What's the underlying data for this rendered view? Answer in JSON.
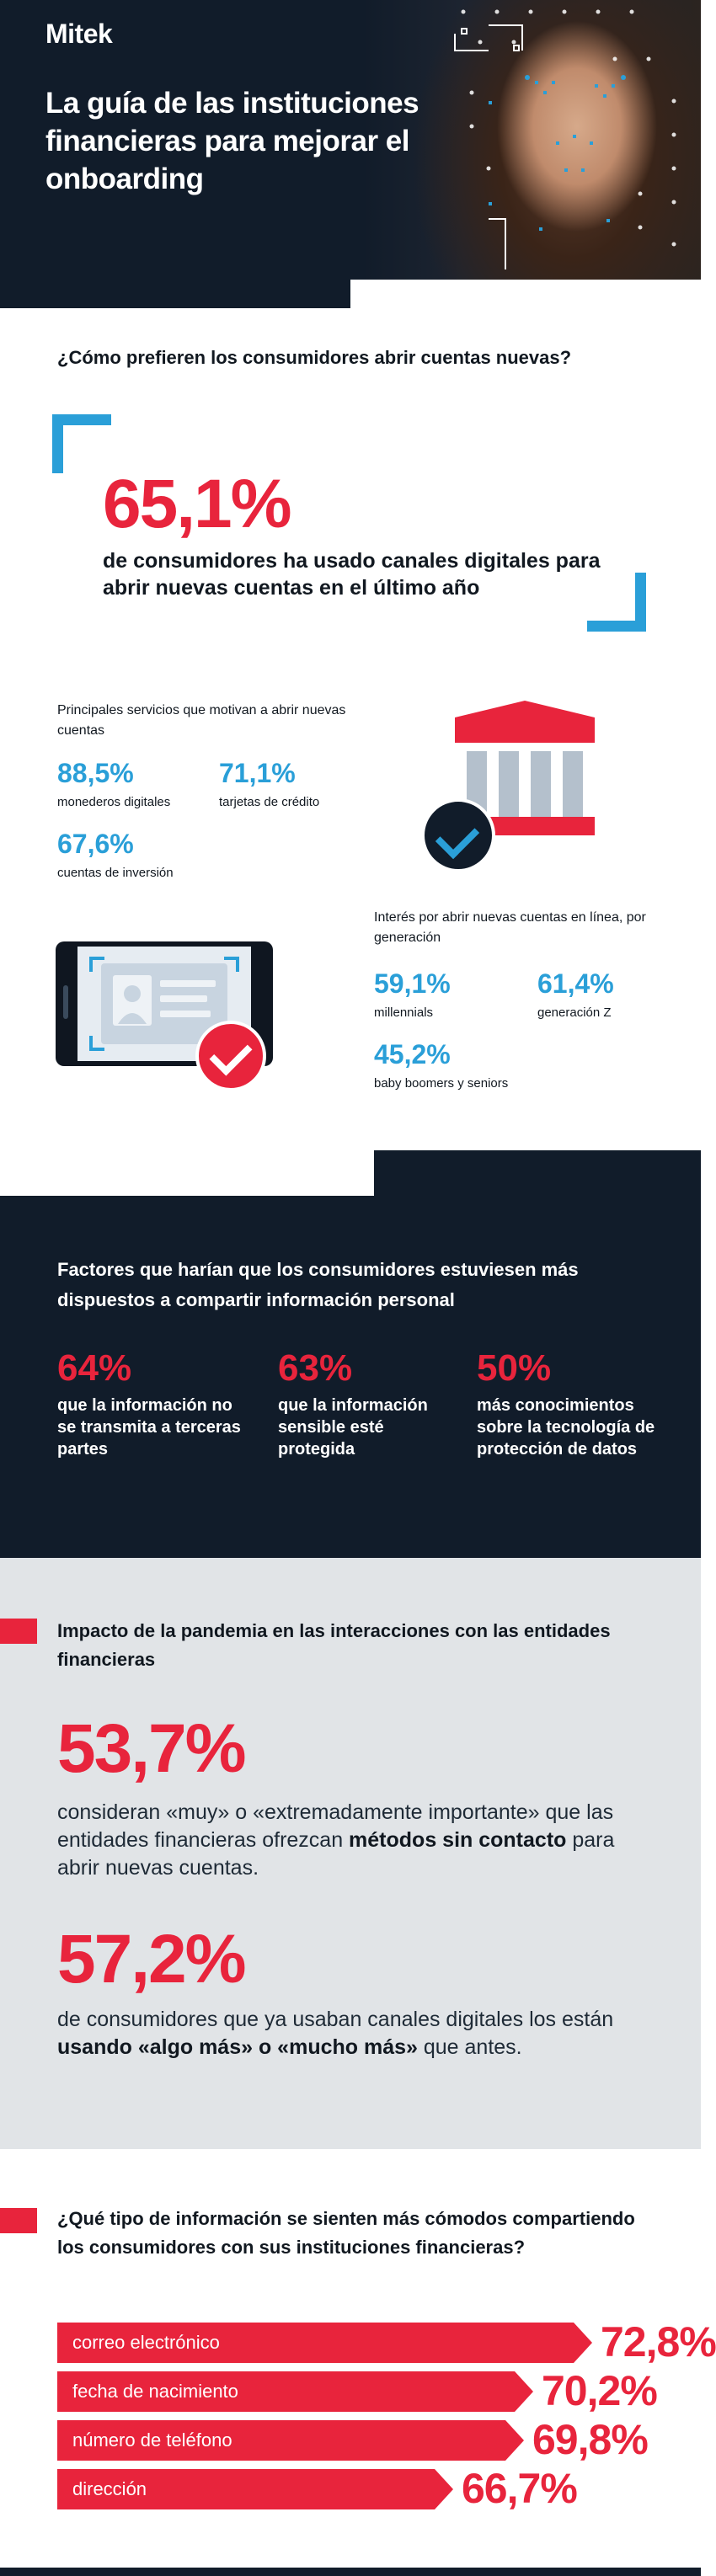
{
  "header": {
    "logo": "Mitek",
    "title": "La guía de las instituciones financieras para mejorar el onboarding"
  },
  "section1": {
    "question": "¿Cómo prefieren los consumidores abrir cuentas nuevas?",
    "big_stat": "65,1%",
    "big_desc": "de consumidores ha usado canales digitales para abrir nuevas cuentas en el último año",
    "services_label": "Principales servicios que motivan a abrir nuevas cuentas",
    "services": [
      {
        "value": "88,5%",
        "label": "monederos digitales"
      },
      {
        "value": "71,1%",
        "label": "tarjetas de crédito"
      },
      {
        "value": "67,6%",
        "label": "cuentas de inversión"
      }
    ],
    "generation_label": "Interés por abrir nuevas cuentas en línea, por generación",
    "generations": [
      {
        "value": "59,1%",
        "label": "millennials"
      },
      {
        "value": "61,4%",
        "label": "generación Z"
      },
      {
        "value": "45,2%",
        "label": "baby boomers y seniors"
      }
    ]
  },
  "section2": {
    "title": "Factores que harían que los consumidores estuviesen más dispuestos a compartir información personal",
    "factors": [
      {
        "value": "64%",
        "label": "que la información no se transmita a terceras partes"
      },
      {
        "value": "63%",
        "label": "que la información sensible esté protegida"
      },
      {
        "value": "50%",
        "label": "más conocimientos sobre la tecnología de protección de datos"
      }
    ]
  },
  "section3": {
    "title": "Impacto de la pandemia en las interacciones con las entidades financieras",
    "stat1": "53,7%",
    "stat1_pre": "consideran «muy» o «extremadamente importante» que las entidades financieras ofrezcan ",
    "stat1_bold": "métodos sin contacto",
    "stat1_post": " para abrir nuevas cuentas.",
    "stat2": "57,2%",
    "stat2_pre": "de consumidores que ya usaban canales digitales los están ",
    "stat2_bold": "usando «algo más» o «mucho más»",
    "stat2_post": " que antes."
  },
  "section4": {
    "title": "¿Qué tipo de información se sienten más cómodos compartiendo los consumidores con sus instituciones financieras?",
    "items": [
      {
        "label": "correo electrónico",
        "value": "72,8%",
        "level": 72.8
      },
      {
        "label": "fecha de nacimiento",
        "value": "70,2%",
        "level": 70.2
      },
      {
        "label": "número de teléfono",
        "value": "69,8%",
        "level": 69.8
      },
      {
        "label": "dirección",
        "value": "66,7%",
        "level": 66.7
      }
    ]
  },
  "colors": {
    "accent_red": "#e8243c",
    "accent_blue": "#2a9fd8",
    "navy": "#111c2a",
    "grey_bg": "#e1e4e7"
  }
}
